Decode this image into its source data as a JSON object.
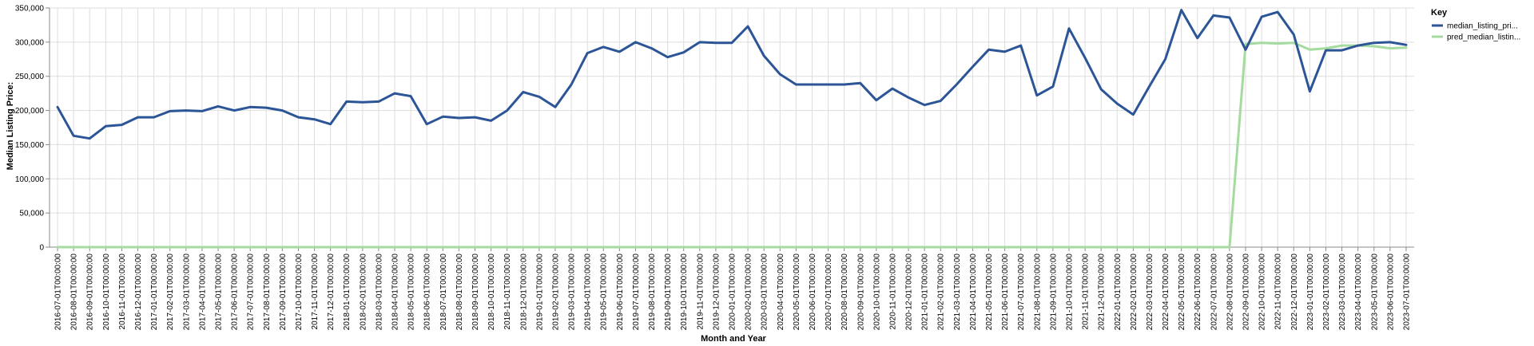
{
  "chart_data": {
    "type": "line",
    "xlabel": "Month and Year",
    "ylabel": "Median Listing Price:",
    "ylim": [
      0,
      350000
    ],
    "yticks": [
      0,
      50000,
      100000,
      150000,
      200000,
      250000,
      300000,
      350000
    ],
    "ytick_labels": [
      "0",
      "50,000",
      "100,000",
      "150,000",
      "200,000",
      "250,000",
      "300,000",
      "350,000"
    ],
    "grid": true,
    "legend": {
      "title": "Key",
      "placement": "top-right"
    },
    "x": [
      "2016-07-01T00:00:00",
      "2016-08-01T00:00:00",
      "2016-09-01T00:00:00",
      "2016-10-01T00:00:00",
      "2016-11-01T00:00:00",
      "2016-12-01T00:00:00",
      "2017-01-01T00:00:00",
      "2017-02-01T00:00:00",
      "2017-03-01T00:00:00",
      "2017-04-01T00:00:00",
      "2017-05-01T00:00:00",
      "2017-06-01T00:00:00",
      "2017-07-01T00:00:00",
      "2017-08-01T00:00:00",
      "2017-09-01T00:00:00",
      "2017-10-01T00:00:00",
      "2017-11-01T00:00:00",
      "2017-12-01T00:00:00",
      "2018-01-01T00:00:00",
      "2018-02-01T00:00:00",
      "2018-03-01T00:00:00",
      "2018-04-01T00:00:00",
      "2018-05-01T00:00:00",
      "2018-06-01T00:00:00",
      "2018-07-01T00:00:00",
      "2018-08-01T00:00:00",
      "2018-09-01T00:00:00",
      "2018-10-01T00:00:00",
      "2018-11-01T00:00:00",
      "2018-12-01T00:00:00",
      "2019-01-01T00:00:00",
      "2019-02-01T00:00:00",
      "2019-03-01T00:00:00",
      "2019-04-01T00:00:00",
      "2019-05-01T00:00:00",
      "2019-06-01T00:00:00",
      "2019-07-01T00:00:00",
      "2019-08-01T00:00:00",
      "2019-09-01T00:00:00",
      "2019-10-01T00:00:00",
      "2019-11-01T00:00:00",
      "2019-12-01T00:00:00",
      "2020-01-01T00:00:00",
      "2020-02-01T00:00:00",
      "2020-03-01T00:00:00",
      "2020-04-01T00:00:00",
      "2020-05-01T00:00:00",
      "2020-06-01T00:00:00",
      "2020-07-01T00:00:00",
      "2020-08-01T00:00:00",
      "2020-09-01T00:00:00",
      "2020-10-01T00:00:00",
      "2020-11-01T00:00:00",
      "2020-12-01T00:00:00",
      "2021-01-01T00:00:00",
      "2021-02-01T00:00:00",
      "2021-03-01T00:00:00",
      "2021-04-01T00:00:00",
      "2021-05-01T00:00:00",
      "2021-06-01T00:00:00",
      "2021-07-01T00:00:00",
      "2021-08-01T00:00:00",
      "2021-09-01T00:00:00",
      "2021-10-01T00:00:00",
      "2021-11-01T00:00:00",
      "2021-12-01T00:00:00",
      "2022-01-01T00:00:00",
      "2022-02-01T00:00:00",
      "2022-03-01T00:00:00",
      "2022-04-01T00:00:00",
      "2022-05-01T00:00:00",
      "2022-06-01T00:00:00",
      "2022-07-01T00:00:00",
      "2022-08-01T00:00:00",
      "2022-09-01T00:00:00",
      "2022-10-01T00:00:00",
      "2022-11-01T00:00:00",
      "2022-12-01T00:00:00",
      "2023-01-01T00:00:00",
      "2023-02-01T00:00:00",
      "2023-03-01T00:00:00",
      "2023-04-01T00:00:00",
      "2023-05-01T00:00:00",
      "2023-06-01T00:00:00",
      "2023-07-01T00:00:00"
    ],
    "series": [
      {
        "name": "median_listing_pri...",
        "color": "#2c5597",
        "values": [
          205000,
          163000,
          159000,
          177000,
          179000,
          190000,
          190000,
          199000,
          200000,
          199000,
          206000,
          200000,
          205000,
          204000,
          200000,
          190000,
          187000,
          180000,
          213000,
          212000,
          213000,
          225000,
          221000,
          180000,
          191000,
          189000,
          190000,
          185000,
          200000,
          227000,
          220000,
          205000,
          238000,
          284000,
          293000,
          286000,
          300000,
          291000,
          278000,
          285000,
          300000,
          299000,
          299000,
          323000,
          280000,
          253000,
          238000,
          238000,
          238000,
          238000,
          240000,
          215000,
          232000,
          219000,
          208000,
          214000,
          238000,
          264000,
          289000,
          286000,
          295000,
          222000,
          235000,
          320000,
          277000,
          231000,
          210000,
          194000,
          235000,
          275000,
          347000,
          306000,
          339000,
          336000,
          289000,
          337000,
          344000,
          311000,
          228000,
          288000,
          288000,
          295000,
          299000,
          300000,
          296000
        ]
      },
      {
        "name": "pred_median_listin...",
        "color": "#a6dba0",
        "values": [
          0,
          0,
          0,
          0,
          0,
          0,
          0,
          0,
          0,
          0,
          0,
          0,
          0,
          0,
          0,
          0,
          0,
          0,
          0,
          0,
          0,
          0,
          0,
          0,
          0,
          0,
          0,
          0,
          0,
          0,
          0,
          0,
          0,
          0,
          0,
          0,
          0,
          0,
          0,
          0,
          0,
          0,
          0,
          0,
          0,
          0,
          0,
          0,
          0,
          0,
          0,
          0,
          0,
          0,
          0,
          0,
          0,
          0,
          0,
          0,
          0,
          0,
          0,
          0,
          0,
          0,
          0,
          0,
          0,
          0,
          0,
          0,
          0,
          0,
          297000,
          299000,
          298000,
          299000,
          289000,
          291000,
          295000,
          295000,
          294000,
          291000,
          292000
        ]
      }
    ]
  }
}
